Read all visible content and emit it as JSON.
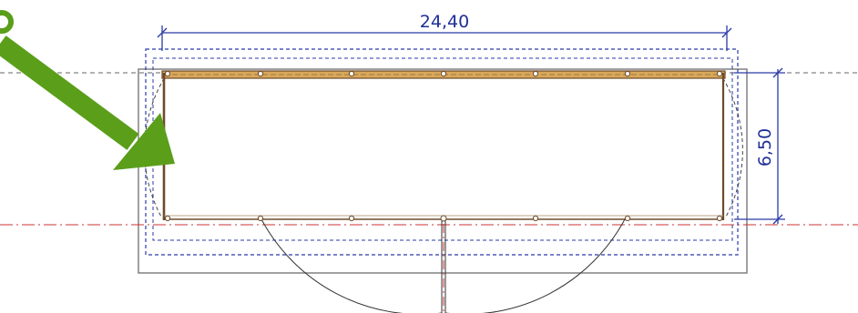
{
  "drawing": {
    "dimensions": {
      "width_label": "24,40",
      "depth_label": "6,50"
    },
    "colors": {
      "dimension": "#2b3aa8",
      "outline": "#555555",
      "wall": "#6e4b2a",
      "wall_fill": "#d9a85a",
      "axis": "#cc3333",
      "arrow": "#5a9e1a"
    }
  }
}
